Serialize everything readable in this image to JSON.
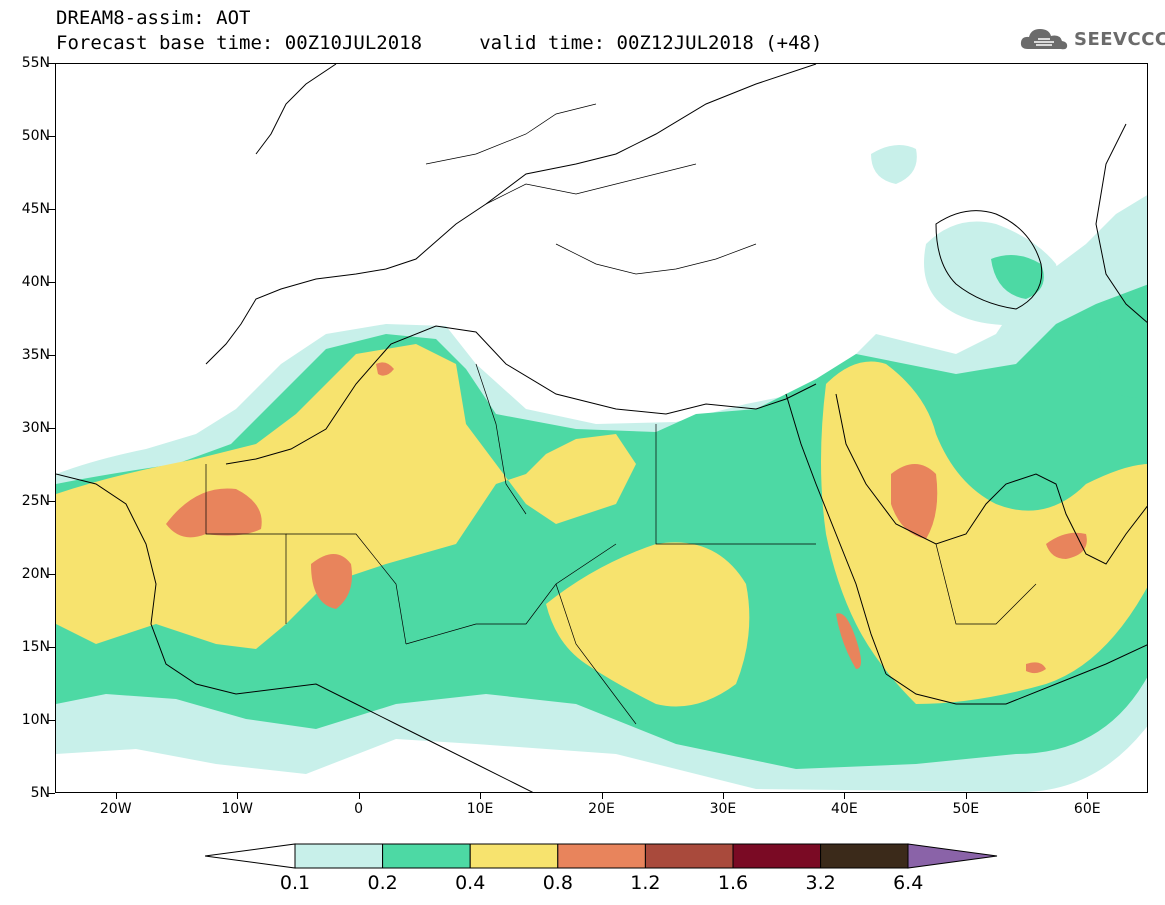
{
  "header": {
    "line1": "DREAM8-assim: AOT",
    "line2": "Forecast base time: 00Z10JUL2018     valid time: 00Z12JUL2018 (+48)"
  },
  "logo": {
    "text": "SEEVCCC",
    "icon": "cloud-icon"
  },
  "map": {
    "lon_range": [
      -25,
      65
    ],
    "lat_range": [
      5,
      55
    ],
    "lat_labels": [
      "55N",
      "50N",
      "45N",
      "40N",
      "35N",
      "30N",
      "25N",
      "20N",
      "15N",
      "10N",
      "5N"
    ],
    "lon_labels": [
      "20W",
      "10W",
      "0",
      "10E",
      "20E",
      "30E",
      "40E",
      "50E",
      "60E"
    ]
  },
  "colorbar": {
    "levels": [
      "0.1",
      "0.2",
      "0.4",
      "0.8",
      "1.2",
      "1.6",
      "3.2",
      "6.4"
    ],
    "colors": [
      "#c8f0ea",
      "#4dd9a4",
      "#f7e36e",
      "#e8845c",
      "#a94a3c",
      "#7a0a24",
      "#3b2a1a"
    ],
    "under_color": "#ffffff",
    "over_color": "#8a63a8"
  }
}
